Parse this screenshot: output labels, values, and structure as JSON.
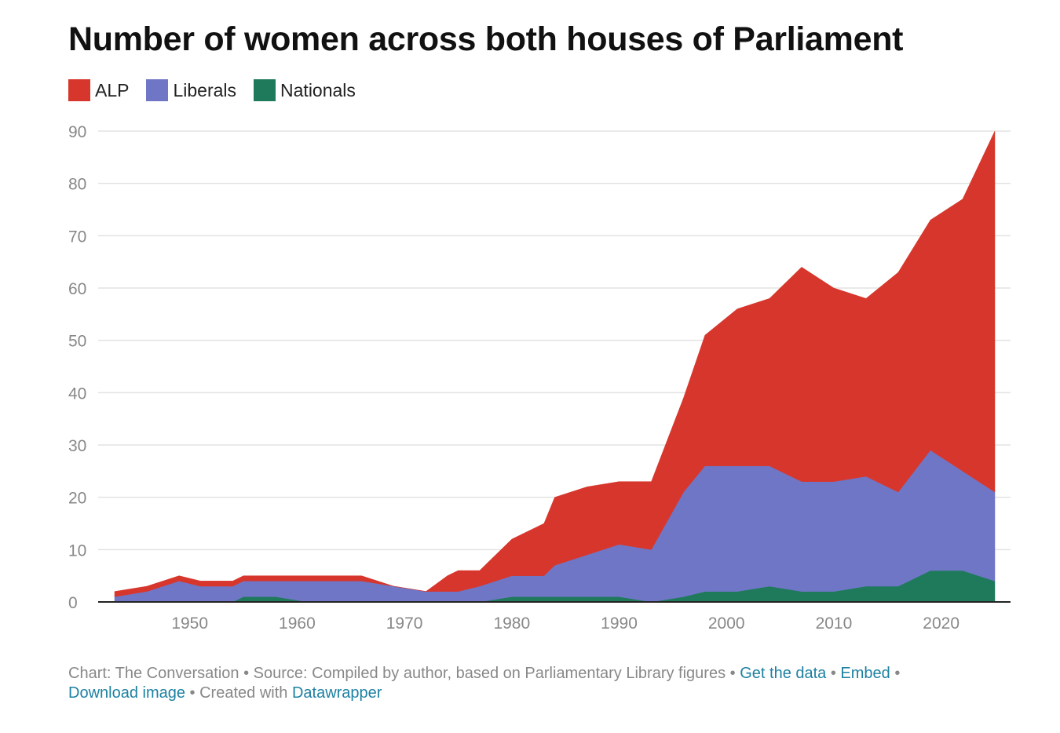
{
  "title": "Number of women across both houses of Parliament",
  "legend": [
    {
      "label": "ALP",
      "color": "#d7362c"
    },
    {
      "label": "Liberals",
      "color": "#6f76c6"
    },
    {
      "label": "Nationals",
      "color": "#1f7a5c"
    }
  ],
  "footer": {
    "chart_credit": "Chart: The Conversation",
    "source": "Source: Compiled by author, based on Parliamentary Library figures",
    "get_data": "Get the data",
    "embed": "Embed",
    "download": "Download image",
    "created_with": "Created with",
    "datawrapper": "Datawrapper",
    "separator": " • "
  },
  "chart_data": {
    "type": "area",
    "stacked": true,
    "title": "Number of women across both houses of Parliament",
    "xlim": [
      1943,
      2025
    ],
    "ylim": [
      0,
      90
    ],
    "x_ticks": [
      1950,
      1960,
      1970,
      1980,
      1990,
      2000,
      2010,
      2020
    ],
    "y_ticks": [
      0,
      10,
      20,
      30,
      40,
      50,
      60,
      70,
      80,
      90
    ],
    "grid": true,
    "legend_position": "top-left",
    "x": [
      1943,
      1946,
      1949,
      1951,
      1954,
      1955,
      1958,
      1961,
      1963,
      1966,
      1969,
      1972,
      1974,
      1975,
      1977,
      1980,
      1983,
      1984,
      1987,
      1990,
      1993,
      1996,
      1998,
      2001,
      2004,
      2007,
      2010,
      2013,
      2016,
      2019,
      2022,
      2025
    ],
    "series": [
      {
        "name": "Nationals",
        "color": "#1f7a5c",
        "values": [
          0,
          0,
          0,
          0,
          0,
          1,
          1,
          0,
          0,
          0,
          0,
          0,
          0,
          0,
          0,
          1,
          1,
          1,
          1,
          1,
          0,
          1,
          2,
          2,
          3,
          2,
          2,
          3,
          3,
          6,
          6,
          4
        ]
      },
      {
        "name": "Liberals",
        "color": "#6f76c6",
        "values": [
          1,
          2,
          4,
          3,
          3,
          3,
          3,
          4,
          4,
          4,
          3,
          2,
          2,
          2,
          3,
          4,
          4,
          6,
          8,
          10,
          10,
          20,
          24,
          24,
          23,
          21,
          21,
          21,
          18,
          23,
          19,
          17
        ]
      },
      {
        "name": "ALP",
        "color": "#d7362c",
        "values": [
          1,
          1,
          1,
          1,
          1,
          1,
          1,
          1,
          1,
          1,
          0,
          0,
          3,
          4,
          3,
          7,
          10,
          13,
          13,
          12,
          13,
          18,
          25,
          30,
          32,
          41,
          37,
          34,
          42,
          44,
          52,
          69
        ]
      }
    ]
  }
}
